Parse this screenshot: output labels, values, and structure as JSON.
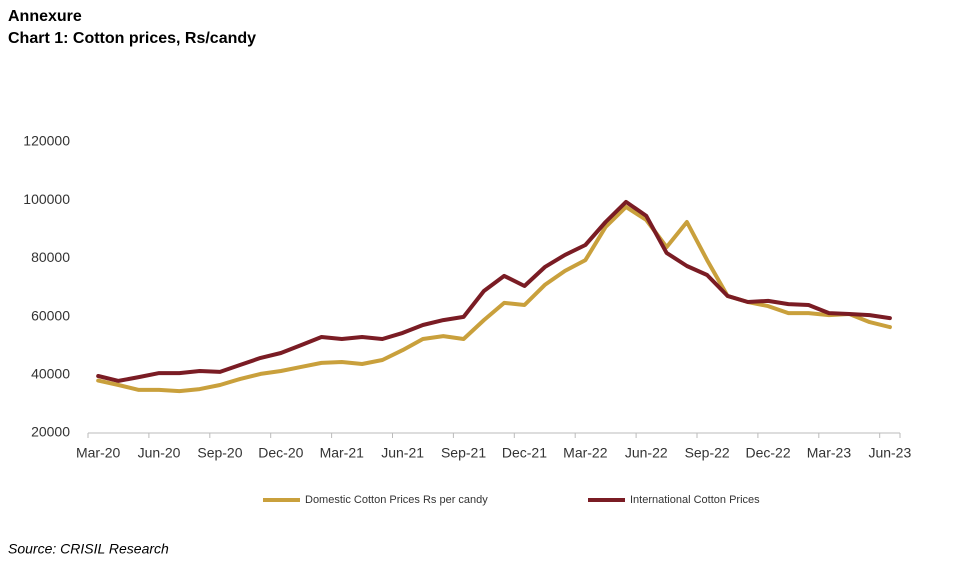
{
  "header": "Annexure",
  "source": "Source: CRISIL Research",
  "chart_data": {
    "type": "line",
    "title": "Chart 1: Cotton prices, Rs/candy",
    "categories": [
      "Mar-20",
      null,
      null,
      "Jun-20",
      null,
      null,
      "Sep-20",
      null,
      null,
      "Dec-20",
      null,
      null,
      "Mar-21",
      null,
      null,
      "Jun-21",
      null,
      null,
      "Sep-21",
      null,
      null,
      "Dec-21",
      null,
      null,
      "Mar-22",
      null,
      null,
      "Jun-22",
      null,
      null,
      "Sep-22",
      null,
      null,
      "Dec-22",
      null,
      null,
      "Mar-23",
      null,
      null,
      "Jun-23"
    ],
    "series": [
      {
        "name": "Domestic Cotton Prices Rs per candy",
        "color": "#c9a03c",
        "values": [
          38000,
          36500,
          34800,
          34800,
          34400,
          35100,
          36500,
          38600,
          40300,
          41300,
          42700,
          44100,
          44400,
          43700,
          45100,
          48500,
          52300,
          53300,
          52300,
          58800,
          64700,
          64000,
          70900,
          75700,
          79400,
          90800,
          97700,
          93200,
          83900,
          92500,
          79400,
          67100,
          65000,
          63600,
          61200,
          61200,
          60500,
          60900,
          58100,
          56400
        ]
      },
      {
        "name": "International Cotton Prices",
        "color": "#7a1c24",
        "values": [
          39600,
          37900,
          39200,
          40600,
          40600,
          41300,
          41000,
          43400,
          45800,
          47500,
          50200,
          53000,
          52300,
          53000,
          52300,
          54400,
          57100,
          58800,
          59900,
          68800,
          74000,
          70500,
          77000,
          81200,
          84600,
          92500,
          99400,
          94600,
          81900,
          77400,
          74300,
          67100,
          65000,
          65400,
          64300,
          64000,
          61200,
          60900,
          60500,
          59500
        ]
      }
    ],
    "ylim": [
      20000,
      120000
    ],
    "yticks": [
      20000,
      40000,
      60000,
      80000,
      100000,
      120000
    ],
    "grid": false,
    "legend": "bottom"
  }
}
